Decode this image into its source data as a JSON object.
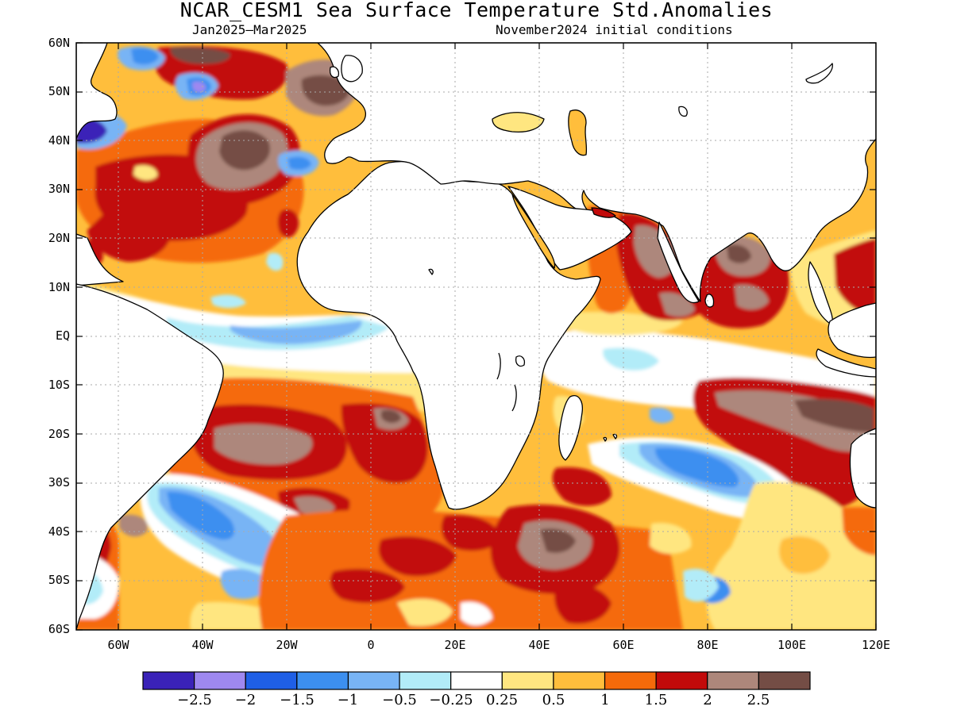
{
  "title": "NCAR_CESM1 Sea Surface Temperature Std.Anomalies",
  "period": "Jan2025–Mar2025",
  "initial_conditions": "November2024 initial conditions",
  "latitude_labels": [
    "60N",
    "50N",
    "40N",
    "30N",
    "20N",
    "10N",
    "EQ",
    "10S",
    "20S",
    "30S",
    "40S",
    "50S",
    "60S"
  ],
  "longitude_labels": [
    "60W",
    "40W",
    "20W",
    "0",
    "20E",
    "40E",
    "60E",
    "80E",
    "100E",
    "120E"
  ],
  "map_extent": {
    "lon": [
      -70,
      120
    ],
    "lat": [
      -60,
      60
    ]
  },
  "colorbar": {
    "colors": [
      "#3a22b8",
      "#9e88f0",
      "#1f5fe6",
      "#3c8ff0",
      "#78b4f5",
      "#b2ecf8",
      "#ffffff",
      "#ffe680",
      "#ffbe3c",
      "#f56a0a",
      "#c20a0a",
      "#ad877b",
      "#744d45"
    ],
    "labels": [
      "−2.5",
      "−2",
      "−1.5",
      "−1",
      "−0.5",
      "−0.25",
      "0.25",
      "0.5",
      "1",
      "1.5",
      "2",
      "2.5"
    ]
  },
  "colors": {
    "land": "#ffffff",
    "coast": "#000000",
    "grid": "#aaaaaa"
  }
}
